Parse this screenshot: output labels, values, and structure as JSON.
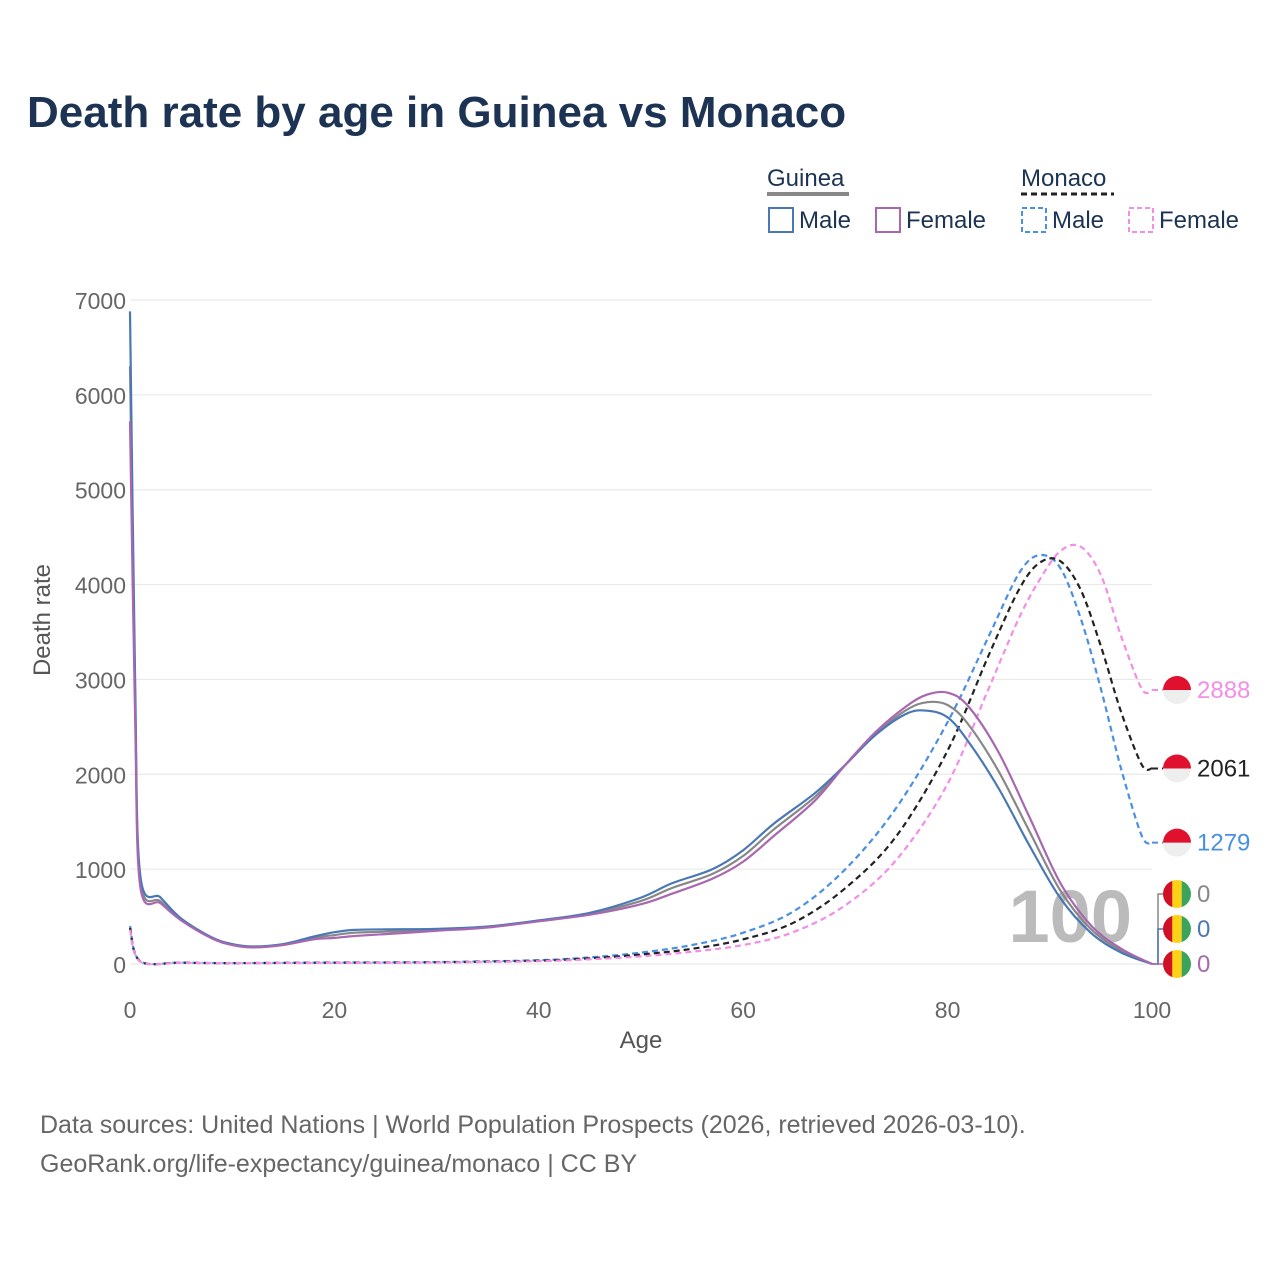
{
  "title": "Death rate by age in Guinea vs Monaco",
  "legend": {
    "groups": [
      {
        "country": "Guinea",
        "line_style": "solid",
        "color": "#888888",
        "items": [
          {
            "label": "Male",
            "color": "#4a78b5"
          },
          {
            "label": "Female",
            "color": "#a868b0"
          }
        ]
      },
      {
        "country": "Monaco",
        "line_style": "dashed",
        "color": "#222222",
        "items": [
          {
            "label": "Male",
            "color": "#4a90e2"
          },
          {
            "label": "Female",
            "color": "#f28ee6"
          }
        ]
      }
    ]
  },
  "age_marker": "100",
  "source": {
    "line1": "Data sources: United Nations | World Population Prospects (2026, retrieved 2026-03-10).",
    "line2": "GeoRank.org/life-expectancy/guinea/monaco | CC BY"
  },
  "chart_data": {
    "type": "line",
    "title": "Death rate by age in Guinea vs Monaco",
    "xlabel": "Age",
    "ylabel": "Death rate",
    "xlim": [
      0,
      100
    ],
    "ylim": [
      0,
      7000
    ],
    "x_ticks": [
      0,
      20,
      40,
      60,
      80,
      100
    ],
    "y_ticks": [
      0,
      1000,
      2000,
      3000,
      4000,
      5000,
      6000,
      7000
    ],
    "grid": true,
    "series": [
      {
        "name": "Guinea Male",
        "color": "#4a78b5",
        "dash": false,
        "end_label": "0",
        "points": [
          [
            0,
            6880
          ],
          [
            0.5,
            3000
          ],
          [
            1,
            940
          ],
          [
            3,
            700
          ],
          [
            5,
            480
          ],
          [
            8,
            280
          ],
          [
            10,
            210
          ],
          [
            12,
            185
          ],
          [
            15,
            210
          ],
          [
            18,
            290
          ],
          [
            20,
            335
          ],
          [
            22,
            360
          ],
          [
            25,
            365
          ],
          [
            30,
            370
          ],
          [
            35,
            395
          ],
          [
            40,
            460
          ],
          [
            45,
            540
          ],
          [
            50,
            700
          ],
          [
            53,
            850
          ],
          [
            57,
            1000
          ],
          [
            60,
            1200
          ],
          [
            63,
            1480
          ],
          [
            67,
            1800
          ],
          [
            70,
            2100
          ],
          [
            73,
            2420
          ],
          [
            76,
            2640
          ],
          [
            78,
            2670
          ],
          [
            80,
            2600
          ],
          [
            82,
            2350
          ],
          [
            85,
            1850
          ],
          [
            88,
            1250
          ],
          [
            91,
            700
          ],
          [
            94,
            330
          ],
          [
            97,
            120
          ],
          [
            100,
            0
          ]
        ]
      },
      {
        "name": "Guinea Both",
        "color": "#888888",
        "dash": false,
        "end_label": "0",
        "points": [
          [
            0,
            6300
          ],
          [
            0.5,
            2800
          ],
          [
            1,
            880
          ],
          [
            3,
            660
          ],
          [
            5,
            470
          ],
          [
            8,
            275
          ],
          [
            10,
            205
          ],
          [
            12,
            180
          ],
          [
            15,
            205
          ],
          [
            18,
            275
          ],
          [
            20,
            305
          ],
          [
            22,
            330
          ],
          [
            25,
            340
          ],
          [
            30,
            360
          ],
          [
            35,
            390
          ],
          [
            40,
            455
          ],
          [
            45,
            530
          ],
          [
            50,
            665
          ],
          [
            53,
            800
          ],
          [
            57,
            950
          ],
          [
            60,
            1140
          ],
          [
            63,
            1420
          ],
          [
            67,
            1760
          ],
          [
            70,
            2100
          ],
          [
            73,
            2430
          ],
          [
            76,
            2680
          ],
          [
            78,
            2760
          ],
          [
            80,
            2730
          ],
          [
            82,
            2530
          ],
          [
            85,
            2030
          ],
          [
            88,
            1400
          ],
          [
            91,
            780
          ],
          [
            94,
            370
          ],
          [
            97,
            140
          ],
          [
            100,
            0
          ]
        ]
      },
      {
        "name": "Guinea Female",
        "color": "#a868b0",
        "dash": false,
        "end_label": "0",
        "points": [
          [
            0,
            5720
          ],
          [
            0.5,
            2600
          ],
          [
            1,
            820
          ],
          [
            3,
            640
          ],
          [
            5,
            460
          ],
          [
            8,
            270
          ],
          [
            10,
            200
          ],
          [
            12,
            175
          ],
          [
            15,
            200
          ],
          [
            18,
            260
          ],
          [
            20,
            275
          ],
          [
            22,
            295
          ],
          [
            25,
            315
          ],
          [
            30,
            350
          ],
          [
            35,
            385
          ],
          [
            40,
            450
          ],
          [
            45,
            520
          ],
          [
            50,
            630
          ],
          [
            53,
            740
          ],
          [
            57,
            900
          ],
          [
            60,
            1080
          ],
          [
            63,
            1350
          ],
          [
            67,
            1720
          ],
          [
            70,
            2100
          ],
          [
            73,
            2450
          ],
          [
            76,
            2720
          ],
          [
            78,
            2840
          ],
          [
            80,
            2860
          ],
          [
            82,
            2720
          ],
          [
            85,
            2230
          ],
          [
            88,
            1550
          ],
          [
            91,
            860
          ],
          [
            94,
            410
          ],
          [
            97,
            160
          ],
          [
            100,
            0
          ]
        ]
      },
      {
        "name": "Monaco Male",
        "color": "#4a90e2",
        "dash": true,
        "end_label": "1279",
        "points": [
          [
            0,
            400
          ],
          [
            1,
            30
          ],
          [
            5,
            15
          ],
          [
            10,
            10
          ],
          [
            20,
            15
          ],
          [
            30,
            20
          ],
          [
            40,
            40
          ],
          [
            45,
            70
          ],
          [
            50,
            120
          ],
          [
            55,
            200
          ],
          [
            60,
            330
          ],
          [
            65,
            560
          ],
          [
            70,
            1000
          ],
          [
            75,
            1650
          ],
          [
            80,
            2550
          ],
          [
            84,
            3450
          ],
          [
            87,
            4120
          ],
          [
            89,
            4310
          ],
          [
            91,
            4180
          ],
          [
            93,
            3650
          ],
          [
            95,
            2900
          ],
          [
            97,
            2050
          ],
          [
            99,
            1350
          ],
          [
            100,
            1279
          ]
        ]
      },
      {
        "name": "Monaco Both",
        "color": "#222222",
        "dash": true,
        "end_label": "2061",
        "points": [
          [
            0,
            380
          ],
          [
            1,
            28
          ],
          [
            5,
            14
          ],
          [
            10,
            10
          ],
          [
            20,
            14
          ],
          [
            30,
            18
          ],
          [
            40,
            35
          ],
          [
            45,
            60
          ],
          [
            50,
            100
          ],
          [
            55,
            160
          ],
          [
            60,
            260
          ],
          [
            65,
            440
          ],
          [
            70,
            800
          ],
          [
            75,
            1350
          ],
          [
            80,
            2250
          ],
          [
            84,
            3250
          ],
          [
            87,
            3950
          ],
          [
            89,
            4230
          ],
          [
            91,
            4250
          ],
          [
            93,
            3950
          ],
          [
            95,
            3350
          ],
          [
            97,
            2650
          ],
          [
            99,
            2100
          ],
          [
            100,
            2061
          ]
        ]
      },
      {
        "name": "Monaco Female",
        "color": "#f28ee6",
        "dash": true,
        "end_label": "2888",
        "points": [
          [
            0,
            360
          ],
          [
            1,
            25
          ],
          [
            5,
            13
          ],
          [
            10,
            9
          ],
          [
            20,
            12
          ],
          [
            30,
            16
          ],
          [
            40,
            30
          ],
          [
            45,
            50
          ],
          [
            50,
            80
          ],
          [
            55,
            130
          ],
          [
            60,
            200
          ],
          [
            65,
            340
          ],
          [
            70,
            620
          ],
          [
            75,
            1100
          ],
          [
            80,
            1900
          ],
          [
            84,
            2900
          ],
          [
            87,
            3650
          ],
          [
            89,
            4050
          ],
          [
            91,
            4350
          ],
          [
            93,
            4400
          ],
          [
            95,
            4100
          ],
          [
            97,
            3450
          ],
          [
            99,
            2900
          ],
          [
            100,
            2888
          ]
        ]
      }
    ]
  }
}
